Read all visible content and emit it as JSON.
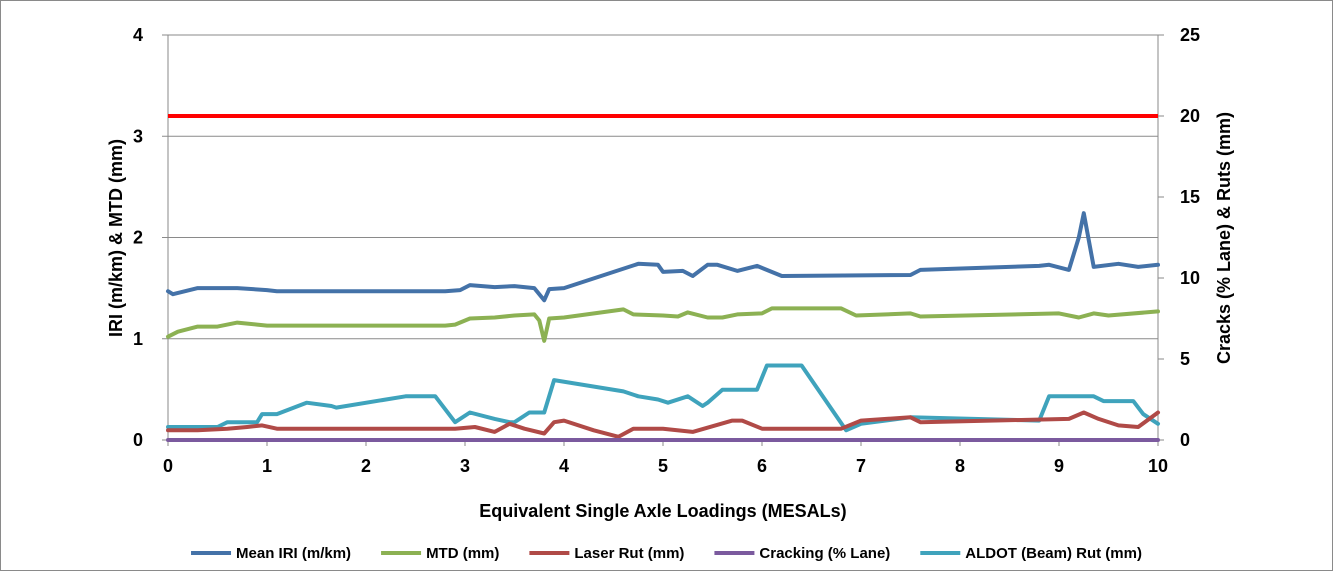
{
  "chart_data": {
    "type": "line",
    "title": "",
    "xlabel": "Equivalent Single Axle Loadings (MESALs)",
    "ylabel_left": "IRI (m/km) & MTD (mm)",
    "ylabel_right": "Cracks (% Lane) & Ruts (mm)",
    "xlim": [
      0,
      10
    ],
    "ylim_left": [
      0,
      4
    ],
    "ylim_right": [
      0,
      25
    ],
    "x_ticks": [
      "0",
      "1",
      "2",
      "3",
      "4",
      "5",
      "6",
      "7",
      "8",
      "9",
      "10"
    ],
    "y_left_ticks": [
      "0",
      "1",
      "2",
      "3",
      "4"
    ],
    "y_right_ticks": [
      "0",
      "5",
      "10",
      "15",
      "20",
      "25"
    ],
    "grid": "horizontal",
    "legend_position": "bottom",
    "threshold_line": {
      "axis": "right",
      "y": 20,
      "color": "#ff0000"
    },
    "series": [
      {
        "name": "Mean IRI (m/km)",
        "axis": "left",
        "color": "#4472a8",
        "x": [
          0,
          0.05,
          0.3,
          0.7,
          1.0,
          1.1,
          2.8,
          2.95,
          3.05,
          3.3,
          3.5,
          3.7,
          3.8,
          3.85,
          4.0,
          4.75,
          4.95,
          5.0,
          5.2,
          5.3,
          5.45,
          5.55,
          5.75,
          5.95,
          6.2,
          7.5,
          7.6,
          8.8,
          8.9,
          9.1,
          9.2,
          9.25,
          9.35,
          9.6,
          9.8,
          10.0
        ],
        "values": [
          1.47,
          1.44,
          1.5,
          1.5,
          1.48,
          1.47,
          1.47,
          1.48,
          1.53,
          1.51,
          1.52,
          1.5,
          1.38,
          1.49,
          1.5,
          1.74,
          1.73,
          1.66,
          1.67,
          1.62,
          1.73,
          1.73,
          1.67,
          1.72,
          1.62,
          1.63,
          1.68,
          1.72,
          1.73,
          1.68,
          2.0,
          2.24,
          1.71,
          1.74,
          1.71,
          1.73
        ]
      },
      {
        "name": "MTD (mm)",
        "axis": "left",
        "color": "#8cb153",
        "x": [
          0,
          0.1,
          0.3,
          0.5,
          0.6,
          0.7,
          0.9,
          1.0,
          2.8,
          2.9,
          3.05,
          3.3,
          3.5,
          3.7,
          3.75,
          3.8,
          3.85,
          4.0,
          4.6,
          4.7,
          5.0,
          5.15,
          5.25,
          5.45,
          5.6,
          5.75,
          6.0,
          6.1,
          6.8,
          6.95,
          7.5,
          7.6,
          9.0,
          9.2,
          9.35,
          9.5,
          10.0
        ],
        "values": [
          1.02,
          1.07,
          1.12,
          1.12,
          1.14,
          1.16,
          1.14,
          1.13,
          1.13,
          1.14,
          1.2,
          1.21,
          1.23,
          1.24,
          1.18,
          0.98,
          1.2,
          1.21,
          1.29,
          1.24,
          1.23,
          1.22,
          1.26,
          1.21,
          1.21,
          1.24,
          1.25,
          1.3,
          1.3,
          1.23,
          1.25,
          1.22,
          1.25,
          1.21,
          1.25,
          1.23,
          1.27
        ]
      },
      {
        "name": "Laser Rut (mm)",
        "axis": "right",
        "color": "#b04a47",
        "x": [
          0,
          0.3,
          0.6,
          0.8,
          0.95,
          1.1,
          2.9,
          3.1,
          3.3,
          3.45,
          3.6,
          3.8,
          3.9,
          4.0,
          4.3,
          4.55,
          4.7,
          5.0,
          5.3,
          5.7,
          5.8,
          6.0,
          6.5,
          6.8,
          7.0,
          7.5,
          7.6,
          9.1,
          9.25,
          9.4,
          9.6,
          9.8,
          10.0
        ],
        "values": [
          0.6,
          0.6,
          0.7,
          0.8,
          0.9,
          0.7,
          0.7,
          0.8,
          0.5,
          1.0,
          0.7,
          0.4,
          1.1,
          1.2,
          0.6,
          0.2,
          0.7,
          0.7,
          0.5,
          1.2,
          1.2,
          0.7,
          0.7,
          0.7,
          1.2,
          1.4,
          1.1,
          1.3,
          1.7,
          1.3,
          0.9,
          0.8,
          1.7
        ]
      },
      {
        "name": "Cracking (% Lane)",
        "axis": "right",
        "color": "#7b5a9e",
        "x": [
          0,
          10
        ],
        "values": [
          0,
          0
        ]
      },
      {
        "name": "ALDOT (Beam) Rut (mm)",
        "axis": "right",
        "color": "#3fa3bc",
        "x": [
          0,
          0.5,
          0.6,
          0.9,
          0.95,
          1.1,
          1.4,
          1.65,
          1.7,
          2.4,
          2.7,
          2.9,
          3.05,
          3.3,
          3.45,
          3.5,
          3.65,
          3.8,
          3.9,
          4.6,
          4.75,
          4.95,
          5.05,
          5.25,
          5.4,
          5.45,
          5.6,
          5.95,
          6.05,
          6.4,
          6.85,
          7.0,
          7.5,
          8.8,
          8.9,
          9.35,
          9.45,
          9.75,
          9.85,
          10.0
        ],
        "values": [
          0.8,
          0.8,
          1.1,
          1.1,
          1.6,
          1.6,
          2.3,
          2.1,
          2.0,
          2.7,
          2.7,
          1.1,
          1.7,
          1.3,
          1.1,
          1.1,
          1.7,
          1.7,
          3.7,
          3.0,
          2.7,
          2.5,
          2.3,
          2.7,
          2.1,
          2.3,
          3.1,
          3.1,
          4.6,
          4.6,
          0.6,
          1.0,
          1.4,
          1.2,
          2.7,
          2.7,
          2.4,
          2.4,
          1.6,
          1.0
        ]
      }
    ]
  }
}
